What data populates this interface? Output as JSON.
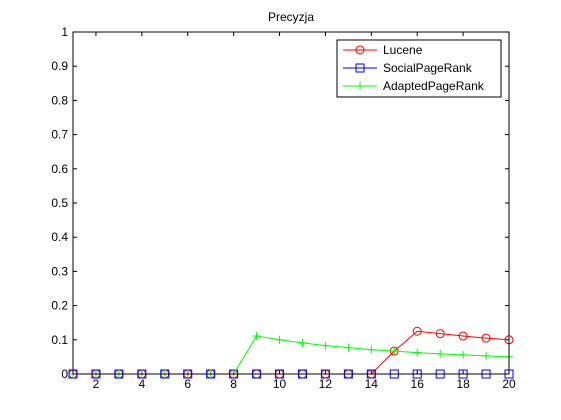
{
  "chart_data": {
    "type": "line",
    "title": "Precyzja",
    "xlabel": "",
    "ylabel": "",
    "xlim": [
      1,
      20
    ],
    "ylim": [
      0,
      1
    ],
    "x_ticks": [
      2,
      4,
      6,
      8,
      10,
      12,
      14,
      16,
      18,
      20
    ],
    "y_ticks": [
      0,
      0.1,
      0.2,
      0.3,
      0.4,
      0.5,
      0.6,
      0.7,
      0.8,
      0.9,
      1
    ],
    "y_tick_labels": [
      "0",
      "0.1",
      "0.2",
      "0.3",
      "0.4",
      "0.5",
      "0.6",
      "0.7",
      "0.8",
      "0.9",
      "1"
    ],
    "grid": false,
    "legend_position": "top-right",
    "x": [
      1,
      2,
      3,
      4,
      5,
      6,
      7,
      8,
      9,
      10,
      11,
      12,
      13,
      14,
      15,
      16,
      17,
      18,
      19,
      20
    ],
    "series": [
      {
        "name": "Lucene",
        "color": "#ff0000",
        "marker": "circle",
        "values": [
          0,
          0,
          0,
          0,
          0,
          0,
          0,
          0,
          0,
          0,
          0,
          0,
          0,
          0,
          0.067,
          0.125,
          0.118,
          0.111,
          0.105,
          0.1
        ]
      },
      {
        "name": "SocialPageRank",
        "color": "#0000ff",
        "marker": "square",
        "values": [
          0,
          0,
          0,
          0,
          0,
          0,
          0,
          0,
          0,
          0,
          0,
          0,
          0,
          0,
          0,
          0,
          0,
          0,
          0,
          0
        ]
      },
      {
        "name": "AdaptedPageRank",
        "color": "#00ff00",
        "marker": "plus",
        "values": [
          0,
          0,
          0,
          0,
          0,
          0,
          0,
          0,
          0.111,
          0.1,
          0.091,
          0.083,
          0.077,
          0.071,
          0.067,
          0.0625,
          0.059,
          0.056,
          0.053,
          0.05
        ]
      }
    ]
  }
}
